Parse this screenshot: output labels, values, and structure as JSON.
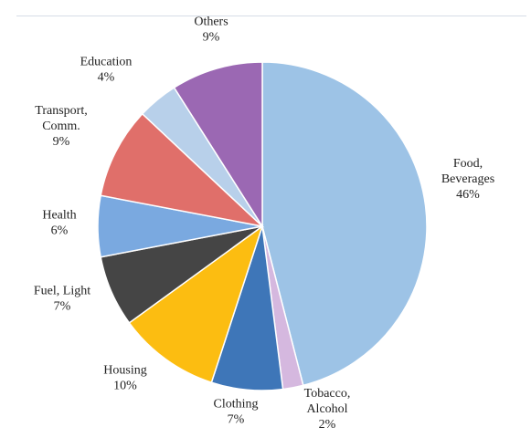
{
  "chart_data": {
    "type": "pie",
    "title": "",
    "start_angle_deg": 0,
    "direction": "clockwise",
    "slices": [
      {
        "label_lines": [
          "Food,",
          "Beverages"
        ],
        "pct_label": "46%",
        "value": 46,
        "color": "#9dc3e6"
      },
      {
        "label_lines": [
          "Tobacco,",
          "Alcohol"
        ],
        "pct_label": "2%",
        "value": 2,
        "color": "#d5b8df"
      },
      {
        "label_lines": [
          "Clothing"
        ],
        "pct_label": "7%",
        "value": 7,
        "color": "#3e76b8"
      },
      {
        "label_lines": [
          "Housing"
        ],
        "pct_label": "10%",
        "value": 10,
        "color": "#fcbd11"
      },
      {
        "label_lines": [
          "Fuel, Light"
        ],
        "pct_label": "7%",
        "value": 7,
        "color": "#454545"
      },
      {
        "label_lines": [
          "Health"
        ],
        "pct_label": "6%",
        "value": 6,
        "color": "#7aa9e0"
      },
      {
        "label_lines": [
          "Transport,",
          "Comm."
        ],
        "pct_label": "9%",
        "value": 9,
        "color": "#e06f6a"
      },
      {
        "label_lines": [
          "Education"
        ],
        "pct_label": "4%",
        "value": 4,
        "color": "#b8d0ea"
      },
      {
        "label_lines": [
          "Others"
        ],
        "pct_label": "9%",
        "value": 9,
        "color": "#9b68b3"
      }
    ]
  }
}
